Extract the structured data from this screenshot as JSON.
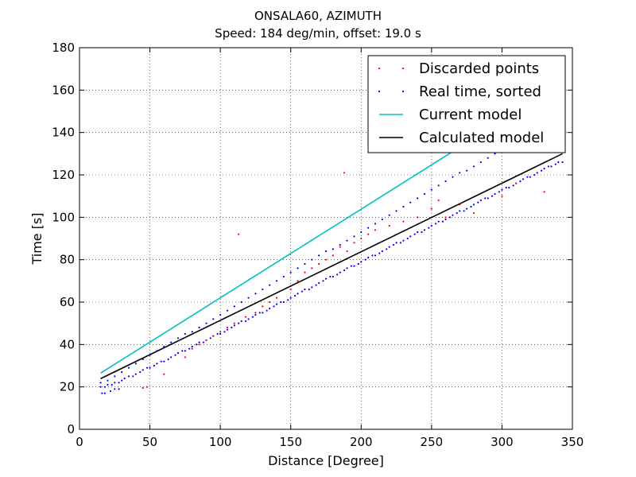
{
  "chart_data": {
    "type": "scatter",
    "title": "ONSALA60, AZIMUTH",
    "subtitle": "Speed: 184 deg/min, offset: 19.0 s",
    "xlabel": "Distance [Degree]",
    "ylabel": "Time [s]",
    "xlim": [
      0,
      350
    ],
    "ylim": [
      0,
      180
    ],
    "xticks": [
      0,
      50,
      100,
      150,
      200,
      250,
      300,
      350
    ],
    "yticks": [
      0,
      20,
      40,
      60,
      80,
      100,
      120,
      140,
      160,
      180
    ],
    "grid": true,
    "legend_position": "top-right",
    "legend": [
      {
        "label": "Discarded points",
        "kind": "points",
        "color": "#ff0000"
      },
      {
        "label": "Real time, sorted",
        "kind": "points",
        "color": "#0000ff"
      },
      {
        "label": "Current model",
        "kind": "line",
        "color": "#00bfbf"
      },
      {
        "label": "Calculated model",
        "kind": "line",
        "color": "#000000"
      }
    ],
    "series": [
      {
        "name": "Current model",
        "kind": "line",
        "color": "#00bfbf",
        "x": [
          15,
          265
        ],
        "y": [
          26.5,
          131
        ]
      },
      {
        "name": "Calculated model",
        "kind": "line",
        "color": "#000000",
        "x": [
          15,
          343
        ],
        "y": [
          23.9,
          130
        ]
      },
      {
        "name": "Real time, sorted",
        "kind": "points",
        "color": "#0000ff",
        "x": [
          15,
          18,
          20,
          23,
          25,
          28,
          30,
          32,
          35,
          38,
          40,
          43,
          45,
          48,
          50,
          53,
          55,
          58,
          60,
          63,
          65,
          68,
          70,
          73,
          75,
          78,
          80,
          83,
          85,
          88,
          90,
          93,
          95,
          98,
          100,
          103,
          105,
          108,
          110,
          113,
          115,
          118,
          120,
          123,
          125,
          128,
          130,
          133,
          135,
          138,
          140,
          143,
          145,
          148,
          150,
          153,
          155,
          158,
          160,
          163,
          165,
          168,
          170,
          173,
          175,
          178,
          180,
          183,
          185,
          188,
          190,
          193,
          195,
          198,
          200,
          203,
          205,
          208,
          210,
          213,
          215,
          218,
          220,
          223,
          225,
          228,
          230,
          233,
          235,
          238,
          240,
          243,
          245,
          248,
          250,
          253,
          255,
          258,
          260,
          263,
          265,
          268,
          270,
          273,
          275,
          278,
          280,
          283,
          285,
          288,
          290,
          293,
          295,
          298,
          300,
          303,
          305,
          308,
          310,
          313,
          315,
          318,
          320,
          323,
          325,
          328,
          330,
          333,
          335,
          338,
          340,
          343,
          15,
          20,
          25,
          30,
          35,
          40,
          45,
          50,
          55,
          60,
          65,
          70,
          75,
          80,
          85,
          90,
          95,
          100,
          105,
          110,
          115,
          120,
          125,
          130,
          135,
          140,
          145,
          150,
          155,
          160,
          165,
          170,
          175,
          180,
          185,
          190,
          195,
          200,
          205,
          210,
          215,
          220,
          225,
          230,
          235,
          240,
          245,
          250,
          255,
          260,
          265,
          270,
          275,
          280,
          285,
          290,
          295,
          300,
          305,
          310,
          315,
          320,
          325,
          330,
          335,
          340,
          16,
          18,
          22,
          25,
          28
        ],
        "y": [
          20,
          20,
          21,
          21,
          22,
          22,
          23,
          24,
          25,
          25,
          26,
          27,
          28,
          29,
          29,
          30,
          31,
          32,
          32,
          33,
          34,
          35,
          36,
          37,
          37,
          38,
          39,
          40,
          41,
          41,
          42,
          43,
          44,
          45,
          45,
          46,
          47,
          48,
          49,
          50,
          51,
          51,
          52,
          53,
          54,
          55,
          55,
          56,
          57,
          58,
          59,
          60,
          60,
          61,
          62,
          63,
          64,
          65,
          66,
          66,
          67,
          68,
          69,
          70,
          71,
          72,
          72,
          73,
          74,
          75,
          76,
          77,
          77,
          78,
          79,
          80,
          81,
          82,
          82,
          83,
          84,
          85,
          86,
          87,
          88,
          88,
          89,
          90,
          91,
          92,
          93,
          93,
          94,
          95,
          96,
          97,
          98,
          98,
          99,
          100,
          101,
          102,
          103,
          103,
          104,
          105,
          106,
          107,
          108,
          109,
          109,
          110,
          111,
          112,
          113,
          114,
          114,
          115,
          116,
          117,
          118,
          119,
          119,
          120,
          121,
          122,
          123,
          124,
          124,
          125,
          126,
          126,
          22,
          23,
          25,
          27,
          29,
          31,
          33,
          35,
          37,
          39,
          41,
          43,
          45,
          46,
          48,
          50,
          52,
          54,
          56,
          58,
          60,
          62,
          64,
          66,
          68,
          70,
          72,
          74,
          76,
          78,
          80,
          82,
          84,
          85,
          87,
          89,
          91,
          93,
          95,
          97,
          99,
          101,
          103,
          105,
          107,
          109,
          111,
          113,
          115,
          117,
          119,
          121,
          122,
          124,
          126,
          128,
          130,
          131,
          133,
          135,
          137,
          139,
          141,
          143,
          145,
          147,
          17,
          17,
          18,
          19,
          19
        ]
      },
      {
        "name": "Discarded points",
        "kind": "points",
        "color": "#ff0000",
        "x": [
          45,
          48,
          60,
          75,
          80,
          85,
          90,
          95,
          100,
          105,
          110,
          113,
          118,
          125,
          130,
          135,
          140,
          150,
          155,
          160,
          165,
          170,
          175,
          180,
          185,
          188,
          190,
          195,
          200,
          205,
          210,
          220,
          230,
          240,
          250,
          255,
          260,
          270,
          280,
          300,
          310,
          330
        ],
        "y": [
          19.5,
          20,
          26,
          34,
          38,
          40,
          42,
          44,
          46,
          48,
          50,
          92,
          53,
          55,
          58,
          60,
          62,
          66,
          70,
          74,
          76,
          78,
          80,
          82,
          86,
          121,
          84,
          88,
          90,
          92,
          94,
          96,
          98,
          100,
          104,
          108,
          100,
          106,
          102,
          110,
          116,
          112
        ]
      }
    ]
  }
}
